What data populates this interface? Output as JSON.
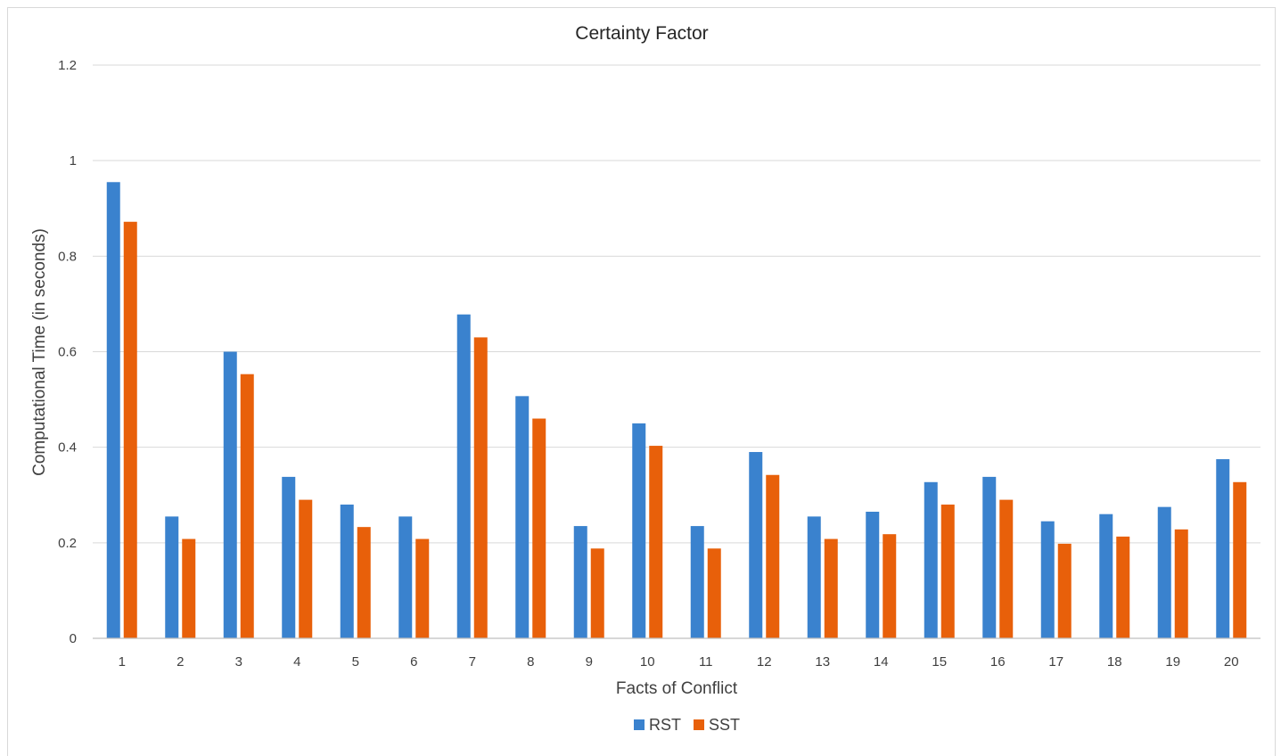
{
  "chart_data": {
    "type": "bar",
    "title": "Certainty Factor",
    "xlabel": "Facts of Conflict",
    "ylabel": "Computational Time (in seconds)",
    "categories": [
      "1",
      "2",
      "3",
      "4",
      "5",
      "6",
      "7",
      "8",
      "9",
      "10",
      "11",
      "12",
      "13",
      "14",
      "15",
      "16",
      "17",
      "18",
      "19",
      "20"
    ],
    "series": [
      {
        "name": "RST",
        "color": "#3a82ce",
        "values": [
          0.955,
          0.255,
          0.6,
          0.338,
          0.28,
          0.255,
          0.678,
          0.507,
          0.235,
          0.45,
          0.235,
          0.39,
          0.255,
          0.265,
          0.327,
          0.338,
          0.245,
          0.26,
          0.275,
          0.375
        ]
      },
      {
        "name": "SST",
        "color": "#e8600a",
        "values": [
          0.872,
          0.208,
          0.553,
          0.29,
          0.233,
          0.208,
          0.63,
          0.46,
          0.188,
          0.403,
          0.188,
          0.342,
          0.208,
          0.218,
          0.28,
          0.29,
          0.198,
          0.213,
          0.228,
          0.327
        ]
      }
    ],
    "ylim": [
      0,
      1.2
    ],
    "yticks": [
      "0",
      "0.2",
      "0.4",
      "0.6",
      "0.8",
      "1",
      "1.2"
    ],
    "grid": true,
    "legend": "bottom"
  }
}
